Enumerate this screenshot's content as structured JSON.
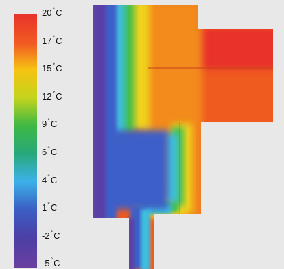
{
  "legend": {
    "unit": "C",
    "degree_symbol": "°",
    "ticks": [
      {
        "value": "20",
        "color": "#e8322b"
      },
      {
        "value": "17",
        "color": "#f25c22"
      },
      {
        "value": "15",
        "color": "#f7c312"
      },
      {
        "value": "12",
        "color": "#c4d41c"
      },
      {
        "value": "9",
        "color": "#3fb944"
      },
      {
        "value": "6",
        "color": "#28a87a"
      },
      {
        "value": "4",
        "color": "#3cb1e8"
      },
      {
        "value": "1",
        "color": "#3b5fc4"
      },
      {
        "value": "-2",
        "color": "#4b3fa6"
      },
      {
        "value": "-5",
        "color": "#6a3fa0"
      }
    ]
  },
  "colors": {
    "background": "#e8e8e8",
    "cold": "#5a3fa6",
    "cool": "#3d5fc8",
    "mild": "#3cc0e0",
    "green": "#3fbf50",
    "yellow": "#f0d21a",
    "orange": "#f28a1e",
    "warm": "#ef5a1f",
    "hot": "#e8322b"
  }
}
